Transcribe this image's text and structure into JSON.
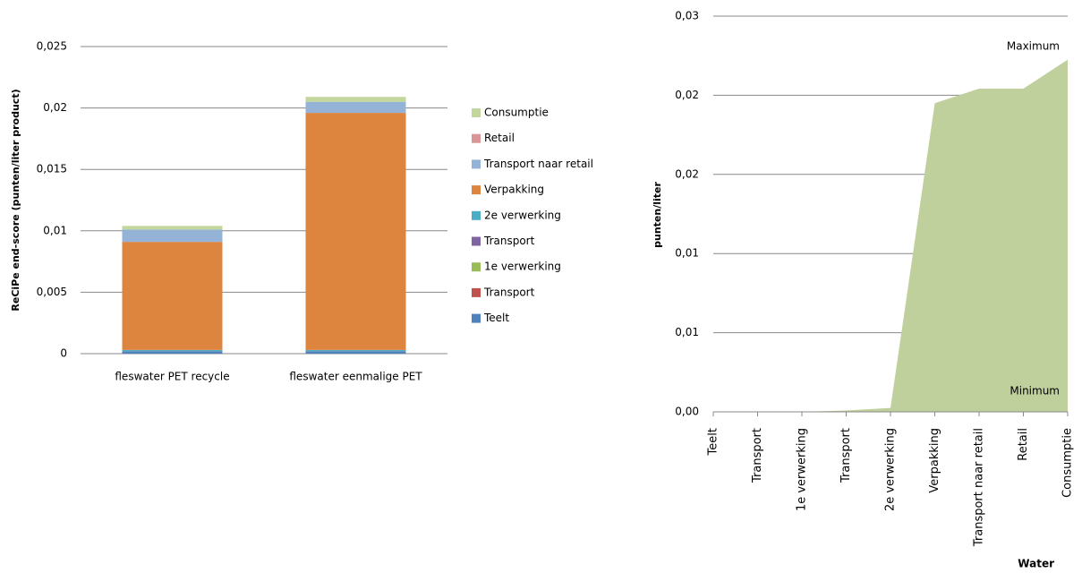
{
  "chart_data": [
    {
      "type": "bar",
      "stacked": true,
      "y_label": "ReCiPe end-score (punten/liter product)",
      "categories": [
        "fleswater PET recycle",
        "fleswater eenmalige PET"
      ],
      "series": [
        {
          "name": "Teelt",
          "color": "#4f81bd",
          "values": [
            0.0002,
            0.0002
          ]
        },
        {
          "name": "Transport",
          "color": "#c0504d",
          "values": [
            0,
            0
          ]
        },
        {
          "name": "1e verwerking",
          "color": "#9bbb59",
          "values": [
            0,
            0
          ]
        },
        {
          "name": "Transport",
          "color": "#8064a2",
          "values": [
            0,
            0
          ]
        },
        {
          "name": "2e verwerking",
          "color": "#4bacc6",
          "values": [
            0.0001,
            0.0001
          ]
        },
        {
          "name": "Verpakking",
          "color": "#dd843f",
          "values": [
            0.0088,
            0.0193
          ]
        },
        {
          "name": "Transport naar retail",
          "color": "#95b3d7",
          "values": [
            0.001,
            0.0009
          ]
        },
        {
          "name": "Retail",
          "color": "#d99694",
          "values": [
            0,
            0
          ]
        },
        {
          "name": "Consumptie",
          "color": "#c3d69b",
          "values": [
            0.0003,
            0.0004
          ]
        }
      ],
      "ylim": [
        0,
        0.025
      ],
      "yticks": [
        0,
        {
          "value": 0.005,
          "label": "0,005"
        },
        {
          "value": 0.01,
          "label": "0,01"
        },
        {
          "value": 0.015,
          "label": "0,015"
        },
        {
          "value": 0.02,
          "label": "0,02"
        },
        {
          "value": 0.025,
          "label": "0,025"
        }
      ],
      "grid": true,
      "legend": "right"
    },
    {
      "type": "area",
      "y_label": "punten/liter",
      "x_label": "Water",
      "annotations": [
        "Maximum",
        "Minimum"
      ],
      "categories": [
        "Teelt",
        "Transport",
        "1e verwerking",
        "Transport",
        "2e verwerking",
        "Verpakking",
        "Transport naar retail",
        "Retail",
        "Consumptie"
      ],
      "values": [
        0,
        0,
        0,
        0.0001,
        0.0003,
        0.0234,
        0.0245,
        0.0245,
        0.0267
      ],
      "color": "#c0d09d",
      "ylim": [
        0,
        0.03
      ],
      "yticks": [
        {
          "value": 0,
          "label": "0,00"
        },
        {
          "value": 0.006,
          "label": "0,01"
        },
        {
          "value": 0.012,
          "label": "0,01"
        },
        {
          "value": 0.018,
          "label": "0,02"
        },
        {
          "value": 0.024,
          "label": "0,02"
        },
        {
          "value": 0.03,
          "label": "0,03"
        }
      ],
      "grid": true
    }
  ]
}
